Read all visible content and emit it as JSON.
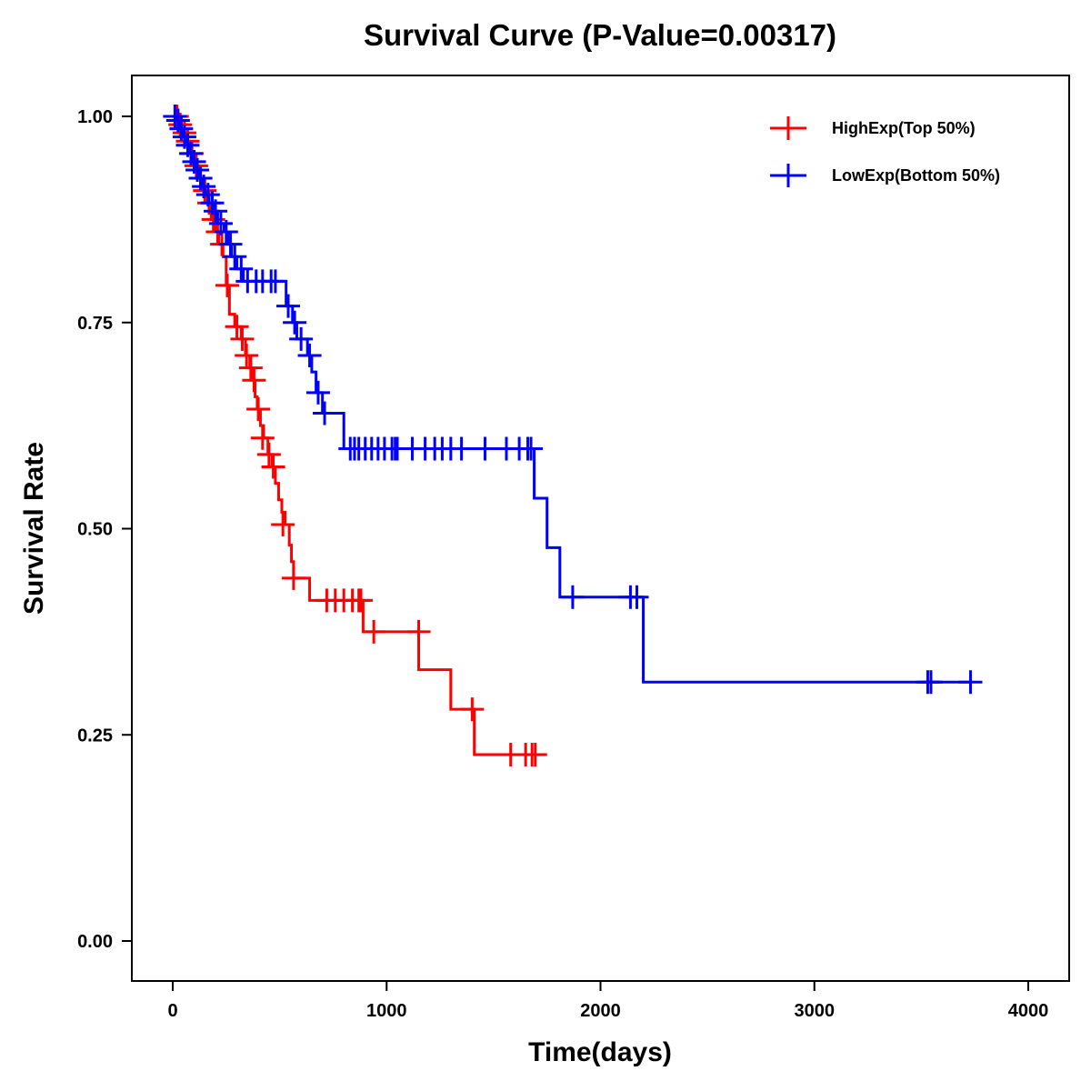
{
  "chart_data": {
    "type": "line",
    "subtype": "kaplan-meier",
    "title": "Survival Curve (P-Value=0.00317)",
    "p_value": 0.00317,
    "xlabel": "Time(days)",
    "ylabel": "Survival Rate",
    "xlim": [
      -200,
      4200
    ],
    "ylim": [
      -0.05,
      1.05
    ],
    "x_ticks": [
      0,
      1000,
      2000,
      3000,
      4000
    ],
    "x_tick_labels": [
      "0",
      "1000",
      "2000",
      "3000",
      "4000"
    ],
    "y_ticks": [
      0,
      0.25,
      0.5,
      0.75,
      1.0
    ],
    "y_tick_labels": [
      "0.00",
      "0.25",
      "0.50",
      "0.75",
      "1.00"
    ],
    "grid": false,
    "legend_position": "top-right",
    "series": [
      {
        "name": "HighExp(Top 50%)",
        "color": "#ff0000",
        "steps": [
          [
            0,
            1.0
          ],
          [
            20,
            0.99
          ],
          [
            40,
            0.98
          ],
          [
            60,
            0.97
          ],
          [
            80,
            0.955
          ],
          [
            100,
            0.94
          ],
          [
            120,
            0.925
          ],
          [
            140,
            0.91
          ],
          [
            160,
            0.895
          ],
          [
            180,
            0.875
          ],
          [
            200,
            0.86
          ],
          [
            215,
            0.845
          ],
          [
            235,
            0.83
          ],
          [
            250,
            0.795
          ],
          [
            265,
            0.76
          ],
          [
            290,
            0.745
          ],
          [
            320,
            0.73
          ],
          [
            340,
            0.71
          ],
          [
            360,
            0.695
          ],
          [
            375,
            0.68
          ],
          [
            385,
            0.66
          ],
          [
            395,
            0.645
          ],
          [
            410,
            0.625
          ],
          [
            425,
            0.61
          ],
          [
            445,
            0.59
          ],
          [
            465,
            0.575
          ],
          [
            480,
            0.555
          ],
          [
            495,
            0.535
          ],
          [
            510,
            0.52
          ],
          [
            525,
            0.505
          ],
          [
            545,
            0.48
          ],
          [
            555,
            0.46
          ],
          [
            565,
            0.44
          ],
          [
            640,
            0.413
          ],
          [
            890,
            0.375
          ],
          [
            1150,
            0.329
          ],
          [
            1300,
            0.281
          ],
          [
            1410,
            0.226
          ]
        ],
        "end_time": 1720,
        "censored": [
          [
            20,
            1.0
          ],
          [
            35,
            0.99
          ],
          [
            55,
            0.98
          ],
          [
            70,
            0.97
          ],
          [
            90,
            0.955
          ],
          [
            110,
            0.94
          ],
          [
            130,
            0.925
          ],
          [
            150,
            0.91
          ],
          [
            170,
            0.895
          ],
          [
            190,
            0.875
          ],
          [
            210,
            0.86
          ],
          [
            230,
            0.845
          ],
          [
            255,
            0.795
          ],
          [
            300,
            0.745
          ],
          [
            325,
            0.73
          ],
          [
            345,
            0.71
          ],
          [
            365,
            0.695
          ],
          [
            380,
            0.68
          ],
          [
            400,
            0.645
          ],
          [
            420,
            0.61
          ],
          [
            450,
            0.59
          ],
          [
            470,
            0.575
          ],
          [
            515,
            0.505
          ],
          [
            565,
            0.44
          ],
          [
            720,
            0.413
          ],
          [
            760,
            0.413
          ],
          [
            800,
            0.413
          ],
          [
            840,
            0.413
          ],
          [
            870,
            0.413
          ],
          [
            880,
            0.413
          ],
          [
            940,
            0.375
          ],
          [
            1150,
            0.375
          ],
          [
            1400,
            0.281
          ],
          [
            1580,
            0.226
          ],
          [
            1650,
            0.226
          ],
          [
            1680,
            0.226
          ],
          [
            1695,
            0.226
          ]
        ]
      },
      {
        "name": "LowExp(Bottom 50%)",
        "color": "#0000ff",
        "steps": [
          [
            0,
            1.0
          ],
          [
            15,
            0.995
          ],
          [
            30,
            0.985
          ],
          [
            45,
            0.975
          ],
          [
            60,
            0.965
          ],
          [
            75,
            0.955
          ],
          [
            90,
            0.945
          ],
          [
            105,
            0.935
          ],
          [
            120,
            0.925
          ],
          [
            135,
            0.915
          ],
          [
            150,
            0.905
          ],
          [
            170,
            0.895
          ],
          [
            190,
            0.885
          ],
          [
            210,
            0.87
          ],
          [
            240,
            0.86
          ],
          [
            260,
            0.845
          ],
          [
            275,
            0.83
          ],
          [
            300,
            0.815
          ],
          [
            330,
            0.8
          ],
          [
            530,
            0.77
          ],
          [
            560,
            0.75
          ],
          [
            580,
            0.73
          ],
          [
            630,
            0.71
          ],
          [
            650,
            0.69
          ],
          [
            670,
            0.665
          ],
          [
            700,
            0.64
          ],
          [
            800,
            0.597
          ],
          [
            1690,
            0.537
          ],
          [
            1750,
            0.477
          ],
          [
            1810,
            0.417
          ],
          [
            2200,
            0.314
          ]
        ],
        "end_time": 3730,
        "censored": [
          [
            10,
            1.0
          ],
          [
            25,
            0.995
          ],
          [
            40,
            0.985
          ],
          [
            55,
            0.975
          ],
          [
            70,
            0.965
          ],
          [
            85,
            0.955
          ],
          [
            100,
            0.945
          ],
          [
            115,
            0.935
          ],
          [
            130,
            0.925
          ],
          [
            145,
            0.915
          ],
          [
            165,
            0.905
          ],
          [
            185,
            0.895
          ],
          [
            200,
            0.885
          ],
          [
            225,
            0.87
          ],
          [
            250,
            0.86
          ],
          [
            270,
            0.845
          ],
          [
            290,
            0.83
          ],
          [
            320,
            0.815
          ],
          [
            350,
            0.8
          ],
          [
            390,
            0.8
          ],
          [
            420,
            0.8
          ],
          [
            460,
            0.8
          ],
          [
            480,
            0.8
          ],
          [
            540,
            0.77
          ],
          [
            570,
            0.75
          ],
          [
            600,
            0.73
          ],
          [
            640,
            0.71
          ],
          [
            680,
            0.665
          ],
          [
            710,
            0.64
          ],
          [
            830,
            0.597
          ],
          [
            850,
            0.597
          ],
          [
            870,
            0.597
          ],
          [
            900,
            0.597
          ],
          [
            930,
            0.597
          ],
          [
            960,
            0.597
          ],
          [
            990,
            0.597
          ],
          [
            1025,
            0.597
          ],
          [
            1040,
            0.597
          ],
          [
            1050,
            0.597
          ],
          [
            1120,
            0.597
          ],
          [
            1180,
            0.597
          ],
          [
            1225,
            0.597
          ],
          [
            1260,
            0.597
          ],
          [
            1300,
            0.597
          ],
          [
            1350,
            0.597
          ],
          [
            1460,
            0.597
          ],
          [
            1560,
            0.597
          ],
          [
            1620,
            0.597
          ],
          [
            1660,
            0.597
          ],
          [
            1675,
            0.597
          ],
          [
            1870,
            0.417
          ],
          [
            2140,
            0.417
          ],
          [
            2170,
            0.417
          ],
          [
            3530,
            0.314
          ],
          [
            3545,
            0.314
          ],
          [
            3730,
            0.314
          ]
        ]
      }
    ]
  }
}
